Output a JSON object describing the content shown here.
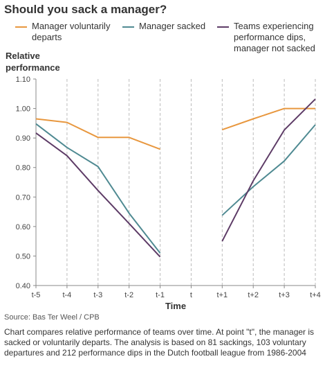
{
  "title": "Should you sack a manager?",
  "source": "Source: Bas Ter Weel / CPB",
  "caption": "Chart compares relative performance of teams over time. At point \"t\", the manager is sacked or voluntarily departs. The analysis is based on 81 sackings, 103 voluntary departures and 212 performance dips in the Dutch football league from 1986-2004",
  "chart_data": {
    "type": "line",
    "title": "Should you sack a manager?",
    "ylabel": "Relative\nperformance",
    "xlabel": "Time",
    "categories": [
      "t-5",
      "t-4",
      "t-3",
      "t-2",
      "t-1",
      "t",
      "t+1",
      "t+2",
      "t+3",
      "t+4"
    ],
    "yticks": [
      "0.40",
      "0.50",
      "0.60",
      "0.70",
      "0.80",
      "0.90",
      "1.00",
      "1.10"
    ],
    "ylim": [
      0.4,
      1.1
    ],
    "grid": "vertical dashed at each time point",
    "legend_position": "top",
    "series": [
      {
        "name": "Manager voluntarily\ndeparts",
        "color": "#e8973e",
        "values": [
          0.965,
          0.953,
          0.902,
          0.902,
          0.862,
          null,
          0.928,
          0.965,
          1.0,
          1.0
        ]
      },
      {
        "name": "Manager sacked",
        "color": "#4f8a92",
        "values": [
          0.948,
          0.868,
          0.803,
          0.645,
          0.51,
          null,
          0.638,
          0.735,
          0.822,
          0.945
        ]
      },
      {
        "name": "Teams experiencing\nperformance dips,\nmanager not sacked",
        "color": "#5d3b66",
        "values": [
          0.917,
          0.84,
          0.722,
          0.61,
          0.497,
          null,
          0.55,
          0.755,
          0.927,
          1.032
        ]
      }
    ]
  }
}
